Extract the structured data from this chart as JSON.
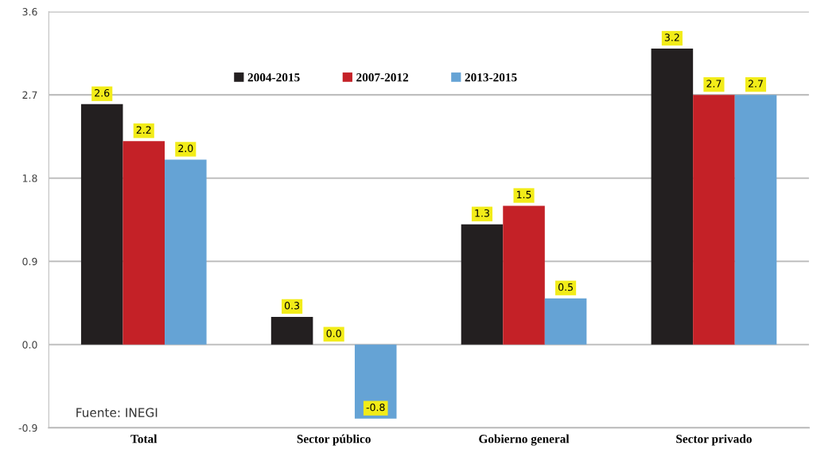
{
  "chart_data": {
    "type": "bar",
    "categories": [
      "Total",
      "Sector público",
      "Gobierno general",
      "Sector privado"
    ],
    "series": [
      {
        "name": "2004-2015",
        "color": "#231f20",
        "values": [
          2.6,
          0.3,
          1.3,
          3.2
        ],
        "value_labels": [
          "2.6",
          "0.3",
          "1.3",
          "3.2"
        ]
      },
      {
        "name": "2007-2012",
        "color": "#c42127",
        "values": [
          2.2,
          0.0,
          1.5,
          2.7
        ],
        "value_labels": [
          "2.2",
          "0.0",
          "1.5",
          "2.7"
        ]
      },
      {
        "name": "2013-2015",
        "color": "#65a3d5",
        "values": [
          2.0,
          -0.8,
          0.5,
          2.7
        ],
        "value_labels": [
          "2.0",
          "-0.8",
          "0.5",
          "2.7"
        ]
      }
    ],
    "ylim": [
      -0.9,
      3.6
    ],
    "yticks": [
      -0.9,
      {
        "value": 0,
        "label": "0.0"
      },
      0.9,
      1.8,
      2.7,
      3.6
    ],
    "grid": "y",
    "legend": "top",
    "annotations": [
      "Fuente: INEGI"
    ]
  }
}
